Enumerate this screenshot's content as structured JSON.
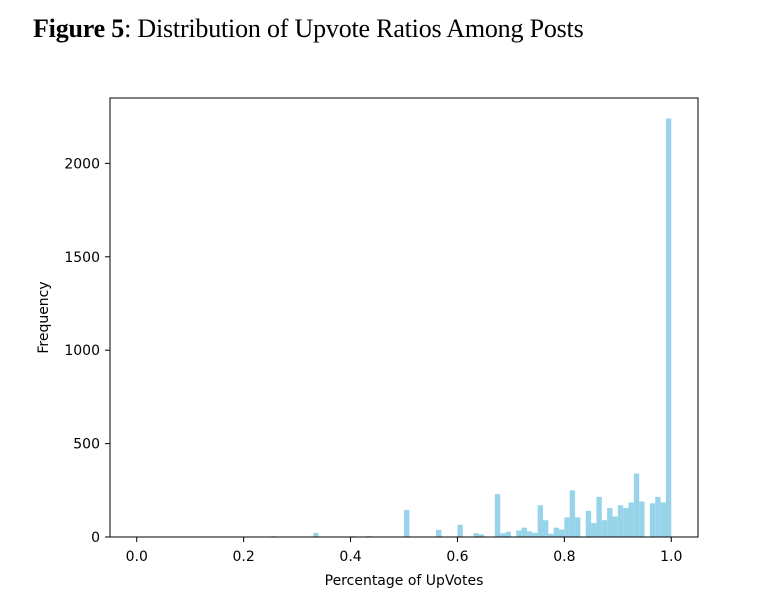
{
  "figure": {
    "label": "Figure 5",
    "caption": ": Distribution of Upvote Ratios Among Posts"
  },
  "chart_data": {
    "type": "bar",
    "title": "",
    "xlabel": "Percentage of UpVotes",
    "ylabel": "Frequency",
    "xlim": [
      -0.05,
      1.05
    ],
    "ylim": [
      0,
      2350
    ],
    "xticks": [
      "0.0",
      "0.2",
      "0.4",
      "0.6",
      "0.8",
      "1.0"
    ],
    "xtick_values": [
      0.0,
      0.2,
      0.4,
      0.6,
      0.8,
      1.0
    ],
    "yticks": [
      "0",
      "500",
      "1000",
      "1500",
      "2000"
    ],
    "ytick_values": [
      0,
      500,
      1000,
      1500,
      2000
    ],
    "bar_color": "#97d4ea",
    "bin_width": 0.01,
    "bins": [
      {
        "x": 0.25,
        "count": 4
      },
      {
        "x": 0.33,
        "count": 22
      },
      {
        "x": 0.4,
        "count": 4
      },
      {
        "x": 0.43,
        "count": 5
      },
      {
        "x": 0.5,
        "count": 145
      },
      {
        "x": 0.56,
        "count": 38
      },
      {
        "x": 0.6,
        "count": 65
      },
      {
        "x": 0.63,
        "count": 20
      },
      {
        "x": 0.64,
        "count": 14
      },
      {
        "x": 0.67,
        "count": 230
      },
      {
        "x": 0.68,
        "count": 20
      },
      {
        "x": 0.69,
        "count": 28
      },
      {
        "x": 0.71,
        "count": 35
      },
      {
        "x": 0.72,
        "count": 50
      },
      {
        "x": 0.73,
        "count": 30
      },
      {
        "x": 0.74,
        "count": 22
      },
      {
        "x": 0.75,
        "count": 170
      },
      {
        "x": 0.76,
        "count": 90
      },
      {
        "x": 0.77,
        "count": 18
      },
      {
        "x": 0.78,
        "count": 50
      },
      {
        "x": 0.79,
        "count": 40
      },
      {
        "x": 0.8,
        "count": 105
      },
      {
        "x": 0.81,
        "count": 250
      },
      {
        "x": 0.82,
        "count": 105
      },
      {
        "x": 0.84,
        "count": 140
      },
      {
        "x": 0.85,
        "count": 75
      },
      {
        "x": 0.86,
        "count": 215
      },
      {
        "x": 0.87,
        "count": 90
      },
      {
        "x": 0.88,
        "count": 155
      },
      {
        "x": 0.89,
        "count": 110
      },
      {
        "x": 0.9,
        "count": 170
      },
      {
        "x": 0.91,
        "count": 155
      },
      {
        "x": 0.92,
        "count": 185
      },
      {
        "x": 0.93,
        "count": 340
      },
      {
        "x": 0.94,
        "count": 190
      },
      {
        "x": 0.96,
        "count": 180
      },
      {
        "x": 0.97,
        "count": 215
      },
      {
        "x": 0.98,
        "count": 185
      },
      {
        "x": 0.99,
        "count": 2240
      }
    ]
  }
}
